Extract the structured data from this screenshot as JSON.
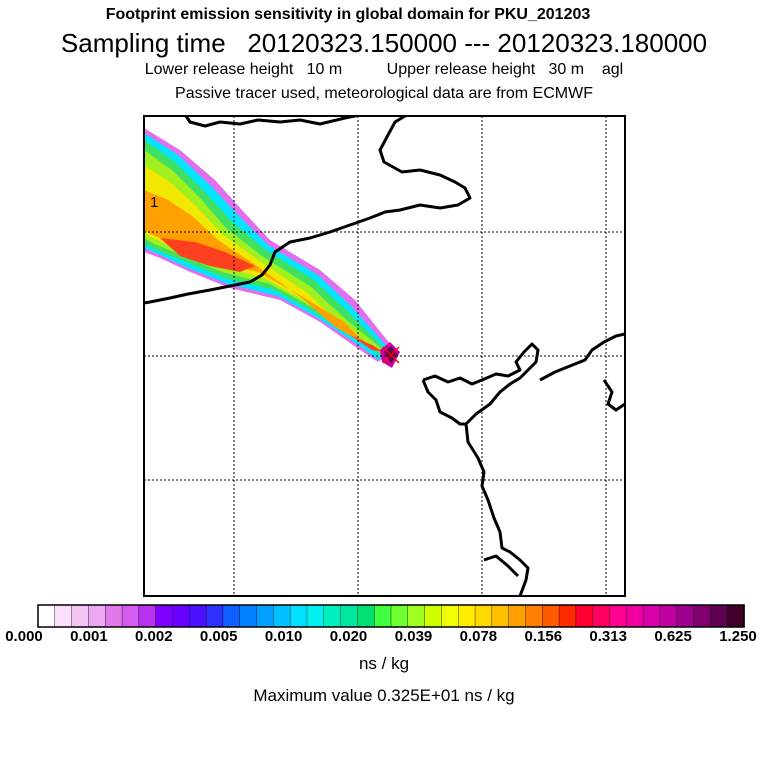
{
  "header": {
    "title": "Footprint emission sensitivity in global domain for PKU_201203",
    "sampling": "Sampling time   20120323.150000 --- 20120323.180000",
    "release": "Lower release height   10 m          Upper release height   30 m    agl",
    "tracer": "Passive tracer used, meteorological data are from ECMWF"
  },
  "map": {
    "contour_label": "1",
    "release_marker": "x-icon"
  },
  "colorbar": {
    "tick_labels": [
      "0.000",
      "0.001",
      "0.002",
      "0.005",
      "0.010",
      "0.020",
      "0.039",
      "0.078",
      "0.156",
      "0.313",
      "0.625",
      "1.250"
    ],
    "colors": [
      "#ffffff",
      "#fbe0fb",
      "#f4c4f4",
      "#eea8f2",
      "#e07ae8",
      "#d55cf0",
      "#b830f0",
      "#8000ff",
      "#6a00ff",
      "#4a10ff",
      "#3030ff",
      "#1060ff",
      "#0080ff",
      "#00a0ff",
      "#00c0ff",
      "#00e0ff",
      "#00f0f0",
      "#00f0c0",
      "#00e8a0",
      "#00e070",
      "#40ff40",
      "#70ff30",
      "#a0ff20",
      "#d0ff00",
      "#f0ff00",
      "#ffee00",
      "#ffd800",
      "#ffc000",
      "#ffa000",
      "#ff8000",
      "#ff5a00",
      "#ff2a00",
      "#ff0030",
      "#ff0060",
      "#ff0090",
      "#f000a0",
      "#d800a8",
      "#c000a0",
      "#a00090",
      "#800070",
      "#600050",
      "#40002a"
    ],
    "unit": "ns / kg",
    "maximum": "Maximum value  0.325E+01 ns / kg"
  }
}
